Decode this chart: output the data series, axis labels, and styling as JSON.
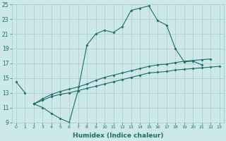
{
  "xlabel": "Humidex (Indice chaleur)",
  "bg_color": "#cce8e8",
  "grid_color": "#aacccc",
  "line_color": "#1a6e6e",
  "x": [
    0,
    1,
    2,
    3,
    4,
    5,
    6,
    7,
    8,
    9,
    10,
    11,
    12,
    13,
    14,
    15,
    16,
    17,
    18,
    19,
    20,
    21,
    22,
    23
  ],
  "curve1": [
    14.5,
    13.0,
    null,
    null,
    null,
    null,
    null,
    null,
    null,
    null,
    null,
    null,
    null,
    null,
    null,
    null,
    null,
    null,
    null,
    null,
    null,
    null,
    null,
    null
  ],
  "curve2": [
    null,
    null,
    11.5,
    11.0,
    10.2,
    9.5,
    9.0,
    13.3,
    19.5,
    21.0,
    21.5,
    21.2,
    22.0,
    24.2,
    24.5,
    24.8,
    22.8,
    22.2,
    19.0,
    17.2,
    17.3,
    16.8,
    null,
    null
  ],
  "curve3": [
    null,
    null,
    11.5,
    12.0,
    12.5,
    12.8,
    13.0,
    13.3,
    13.6,
    13.9,
    14.2,
    14.5,
    14.8,
    15.1,
    15.4,
    15.7,
    15.8,
    15.9,
    16.1,
    16.2,
    16.3,
    16.4,
    16.5,
    16.6
  ],
  "curve4": [
    null,
    null,
    11.5,
    12.2,
    12.8,
    13.2,
    13.5,
    13.8,
    14.2,
    14.7,
    15.1,
    15.4,
    15.7,
    16.0,
    16.3,
    16.6,
    16.8,
    16.9,
    17.1,
    17.3,
    17.4,
    17.5,
    17.6,
    null
  ],
  "ylim": [
    9,
    25
  ],
  "xlim": [
    -0.5,
    23.5
  ],
  "yticks": [
    9,
    11,
    13,
    15,
    17,
    19,
    21,
    23,
    25
  ],
  "xticks": [
    0,
    1,
    2,
    3,
    4,
    5,
    6,
    7,
    8,
    9,
    10,
    11,
    12,
    13,
    14,
    15,
    16,
    17,
    18,
    19,
    20,
    21,
    22,
    23
  ]
}
